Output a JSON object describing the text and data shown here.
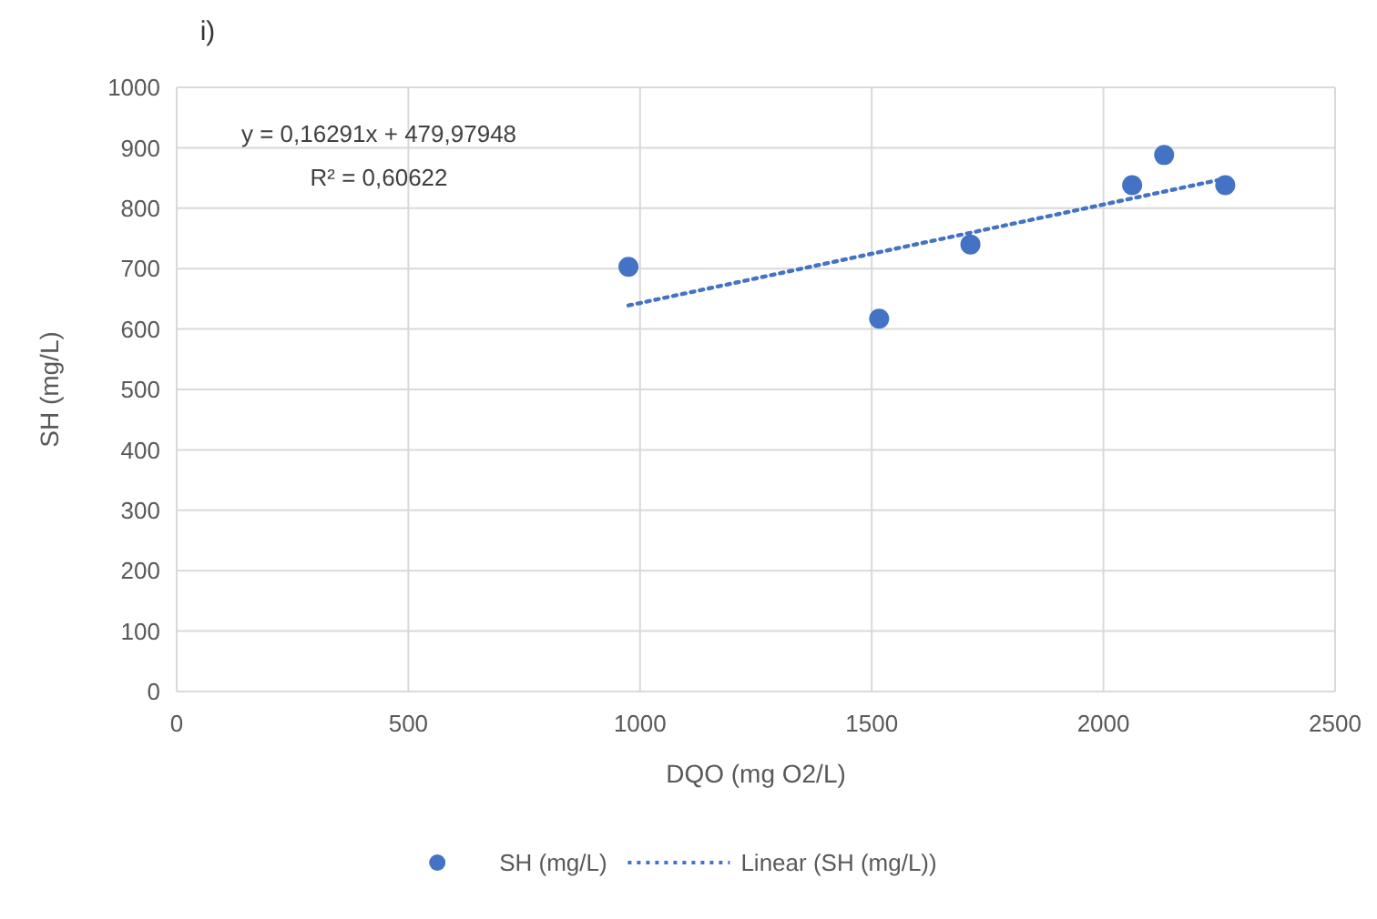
{
  "chart_data": {
    "type": "scatter",
    "title": "i)",
    "xlabel": "DQO (mg O2/L)",
    "ylabel": "SH (mg/L)",
    "xlim": [
      0,
      2500
    ],
    "xticks": [
      0,
      500,
      1000,
      1500,
      2000,
      2500
    ],
    "ylim": [
      0,
      1000
    ],
    "yticks": [
      0,
      100,
      200,
      300,
      400,
      500,
      600,
      700,
      800,
      900,
      1000
    ],
    "grid": true,
    "legend": "bottom",
    "series": [
      {
        "name": "SH (mg/L)",
        "color": "#4472c4",
        "marker": "circle",
        "x": [
          975,
          1516,
          1713,
          2062,
          2131,
          2263
        ],
        "values": [
          703,
          617,
          740,
          838,
          888,
          838
        ]
      },
      {
        "name": "Linear (SH (mg/L))",
        "type": "line",
        "color": "#4472c4",
        "line_style": "dotted",
        "x": [
          975,
          2263
        ],
        "values": [
          639,
          849
        ]
      }
    ],
    "annotations": [
      "y = 0,16291x + 479,97948",
      "R² = 0,60622"
    ]
  }
}
